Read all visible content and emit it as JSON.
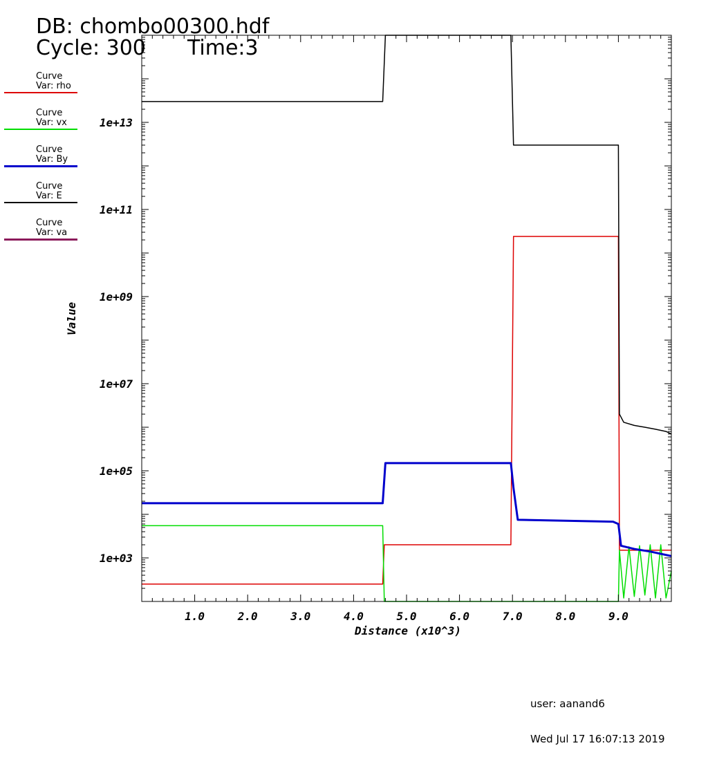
{
  "header": {
    "db_title": "DB: chombo00300.hdf",
    "cycle": "Cycle: 300",
    "time": "Time:3"
  },
  "legend": [
    {
      "line1": "Curve",
      "line2": "Var: rho",
      "color": "#dd0000"
    },
    {
      "line1": "Curve",
      "line2": "Var: vx",
      "color": "#00dd00"
    },
    {
      "line1": "Curve",
      "line2": "Var: By",
      "color": "#0000cc"
    },
    {
      "line1": "Curve",
      "line2": "Var: E",
      "color": "#000000"
    },
    {
      "line1": "Curve",
      "line2": "Var: va",
      "color": "#8b1a5a"
    }
  ],
  "footer": {
    "user": "user: aanand6",
    "date": "Wed Jul 17 16:07:13 2019"
  },
  "chart_data": {
    "type": "line",
    "xlabel": "Distance (x10^3)",
    "ylabel": "Value",
    "xlim": [
      0,
      10.0
    ],
    "ylim": [
      100,
      1000000000000000.0
    ],
    "y_scale": "log",
    "x_ticks": [
      "1.0",
      "2.0",
      "3.0",
      "4.0",
      "5.0",
      "6.0",
      "7.0",
      "8.0",
      "9.0"
    ],
    "y_ticks": [
      "1e+03",
      "1e+05",
      "1e+07",
      "1e+09",
      "1e+11",
      "1e+13"
    ],
    "series": [
      {
        "name": "rho",
        "color": "#dd0000",
        "x": [
          0,
          4.55,
          4.58,
          6.97,
          7.02,
          9.0,
          9.02,
          10.0
        ],
        "y": [
          250,
          250,
          2000,
          2000,
          24000000000.0,
          24000000000.0,
          1500,
          1500
        ]
      },
      {
        "name": "vx",
        "color": "#00dd00",
        "x": [
          0,
          4.55,
          4.58,
          9.0,
          9.02,
          9.1,
          9.2,
          9.3,
          9.4,
          9.5,
          9.6,
          9.7,
          9.8,
          9.9,
          10.0
        ],
        "y": [
          5500,
          5500,
          100,
          100,
          1500,
          120,
          1800,
          130,
          1900,
          140,
          2000,
          120,
          2000,
          120,
          500
        ]
      },
      {
        "name": "By",
        "color": "#0000cc",
        "x": [
          0,
          4.55,
          4.6,
          6.97,
          7.02,
          7.1,
          8.9,
          9.0,
          9.05,
          9.3,
          9.6,
          10.0
        ],
        "y": [
          18000,
          18000,
          150000,
          150000,
          40000,
          7500,
          6800,
          6000,
          1900,
          1600,
          1400,
          1100
        ]
      },
      {
        "name": "E",
        "color": "#000000",
        "x": [
          0,
          4.55,
          4.6,
          4.62,
          6.97,
          7.02,
          9.0,
          9.02,
          9.1,
          9.3,
          9.5,
          9.7,
          9.9,
          10.0
        ],
        "y": [
          30000000000000.0,
          30000000000000.0,
          1000000000000000.0,
          1000000000000000.0,
          1000000000000000.0,
          3000000000000.0,
          3000000000000.0,
          2000000.0,
          1300000.0,
          1100000.0,
          1000000.0,
          900000.0,
          800000.0,
          700000.0
        ]
      },
      {
        "name": "va",
        "color": "#8b1a5a",
        "x": [],
        "y": []
      }
    ]
  }
}
